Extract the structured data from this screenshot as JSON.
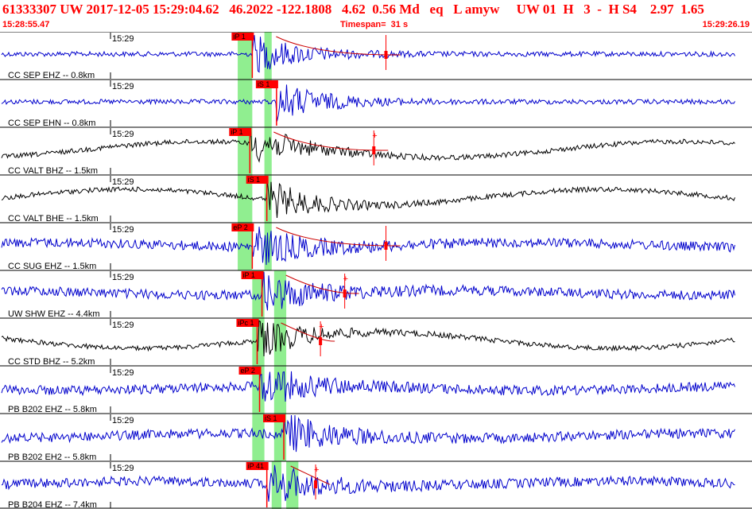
{
  "header": {
    "title": "61333307 UW 2017-12-05 15:29:04.62   46.2022 -122.1808   4.62  0.56 Md   eq   L amyw     UW 01  H   3  -  H S4    2.97  1.65",
    "start_time": "15:28:55.47",
    "timespan": "Timespan=  31 s",
    "end_time": "15:29:26.19"
  },
  "colors": {
    "header_text": "#ff0000",
    "trace_blue": "#0000cc",
    "trace_black": "#000000",
    "pick_red": "#ff0000",
    "window_green": "#90ee90",
    "coda_red": "#cc0000",
    "divider": "#000000"
  },
  "chart_data": {
    "type": "line",
    "time_tick_label": "15:29",
    "traces": [
      {
        "label": "CC SEP EHZ -- 0.8km",
        "color": "blue",
        "pick": "iP 1",
        "pick_t": 10.4,
        "green": [
          [
            9.8,
            10.4
          ],
          [
            10.9,
            11.2
          ]
        ],
        "amp": "med",
        "coda": true,
        "coda_end": 16.5,
        "plus": false
      },
      {
        "label": "CC SEP EHN -- 0.8km",
        "color": "blue",
        "pick": "iS 1",
        "pick_t": 11.4,
        "green": [
          [
            9.8,
            10.4
          ],
          [
            10.9,
            11.2
          ]
        ],
        "amp": "med",
        "coda": false,
        "plus": false
      },
      {
        "label": "CC VALT BHZ -- 1.5km",
        "color": "black",
        "pick": "iP 1",
        "pick_t": 10.3,
        "green": [
          [
            9.8,
            10.4
          ],
          [
            10.9,
            11.2
          ]
        ],
        "amp": "med",
        "coda": true,
        "coda_end": 16.0,
        "plus": true
      },
      {
        "label": "CC VALT BHE -- 1.5km",
        "color": "black",
        "pick": "iS 1",
        "pick_t": 11.0,
        "green": [
          [
            9.8,
            10.4
          ],
          [
            10.9,
            11.2
          ]
        ],
        "amp": "med",
        "coda": false,
        "plus": false
      },
      {
        "label": "CC SUG EHZ -- 1.5km",
        "color": "blue",
        "pick": "eP 2",
        "pick_t": 10.4,
        "green": [
          [
            9.8,
            10.4
          ],
          [
            10.9,
            11.2
          ]
        ],
        "amp": "high",
        "coda": true,
        "coda_end": 16.5,
        "plus": false
      },
      {
        "label": "UW SHW EHZ -- 4.4km",
        "color": "blue",
        "pick": "iP 1",
        "pick_t": 10.8,
        "green": [
          [
            10.4,
            10.9
          ],
          [
            11.3,
            11.8
          ]
        ],
        "amp": "high",
        "coda": true,
        "coda_end": 14.8,
        "plus": true
      },
      {
        "label": "CC STD BHZ -- 5.2km",
        "color": "black",
        "pick": "iPc 1",
        "pick_t": 10.6,
        "green": [
          [
            10.4,
            10.9
          ],
          [
            11.3,
            11.8
          ]
        ],
        "amp": "med",
        "coda": true,
        "coda_end": 13.8,
        "plus": true
      },
      {
        "label": "PB B202 EHZ -- 5.8km",
        "color": "blue",
        "pick": "eP 2",
        "pick_t": 10.7,
        "green": [
          [
            10.4,
            10.9
          ],
          [
            11.3,
            11.8
          ]
        ],
        "amp": "high",
        "coda": false,
        "plus": false
      },
      {
        "label": "PB B202 EH2 -- 5.8km",
        "color": "blue",
        "pick": "iS 1",
        "pick_t": 11.7,
        "green": [
          [
            10.4,
            10.9
          ],
          [
            11.3,
            11.8
          ]
        ],
        "amp": "high",
        "coda": false,
        "plus": false
      },
      {
        "label": "PB B204 EHZ -- 7.4km",
        "color": "blue",
        "pick": "iP 41",
        "pick_t": 11.0,
        "green": [
          [
            11.2,
            11.6
          ],
          [
            11.8,
            12.3
          ]
        ],
        "amp": "high",
        "coda": true,
        "coda_end": 13.6,
        "plus": true
      }
    ]
  }
}
